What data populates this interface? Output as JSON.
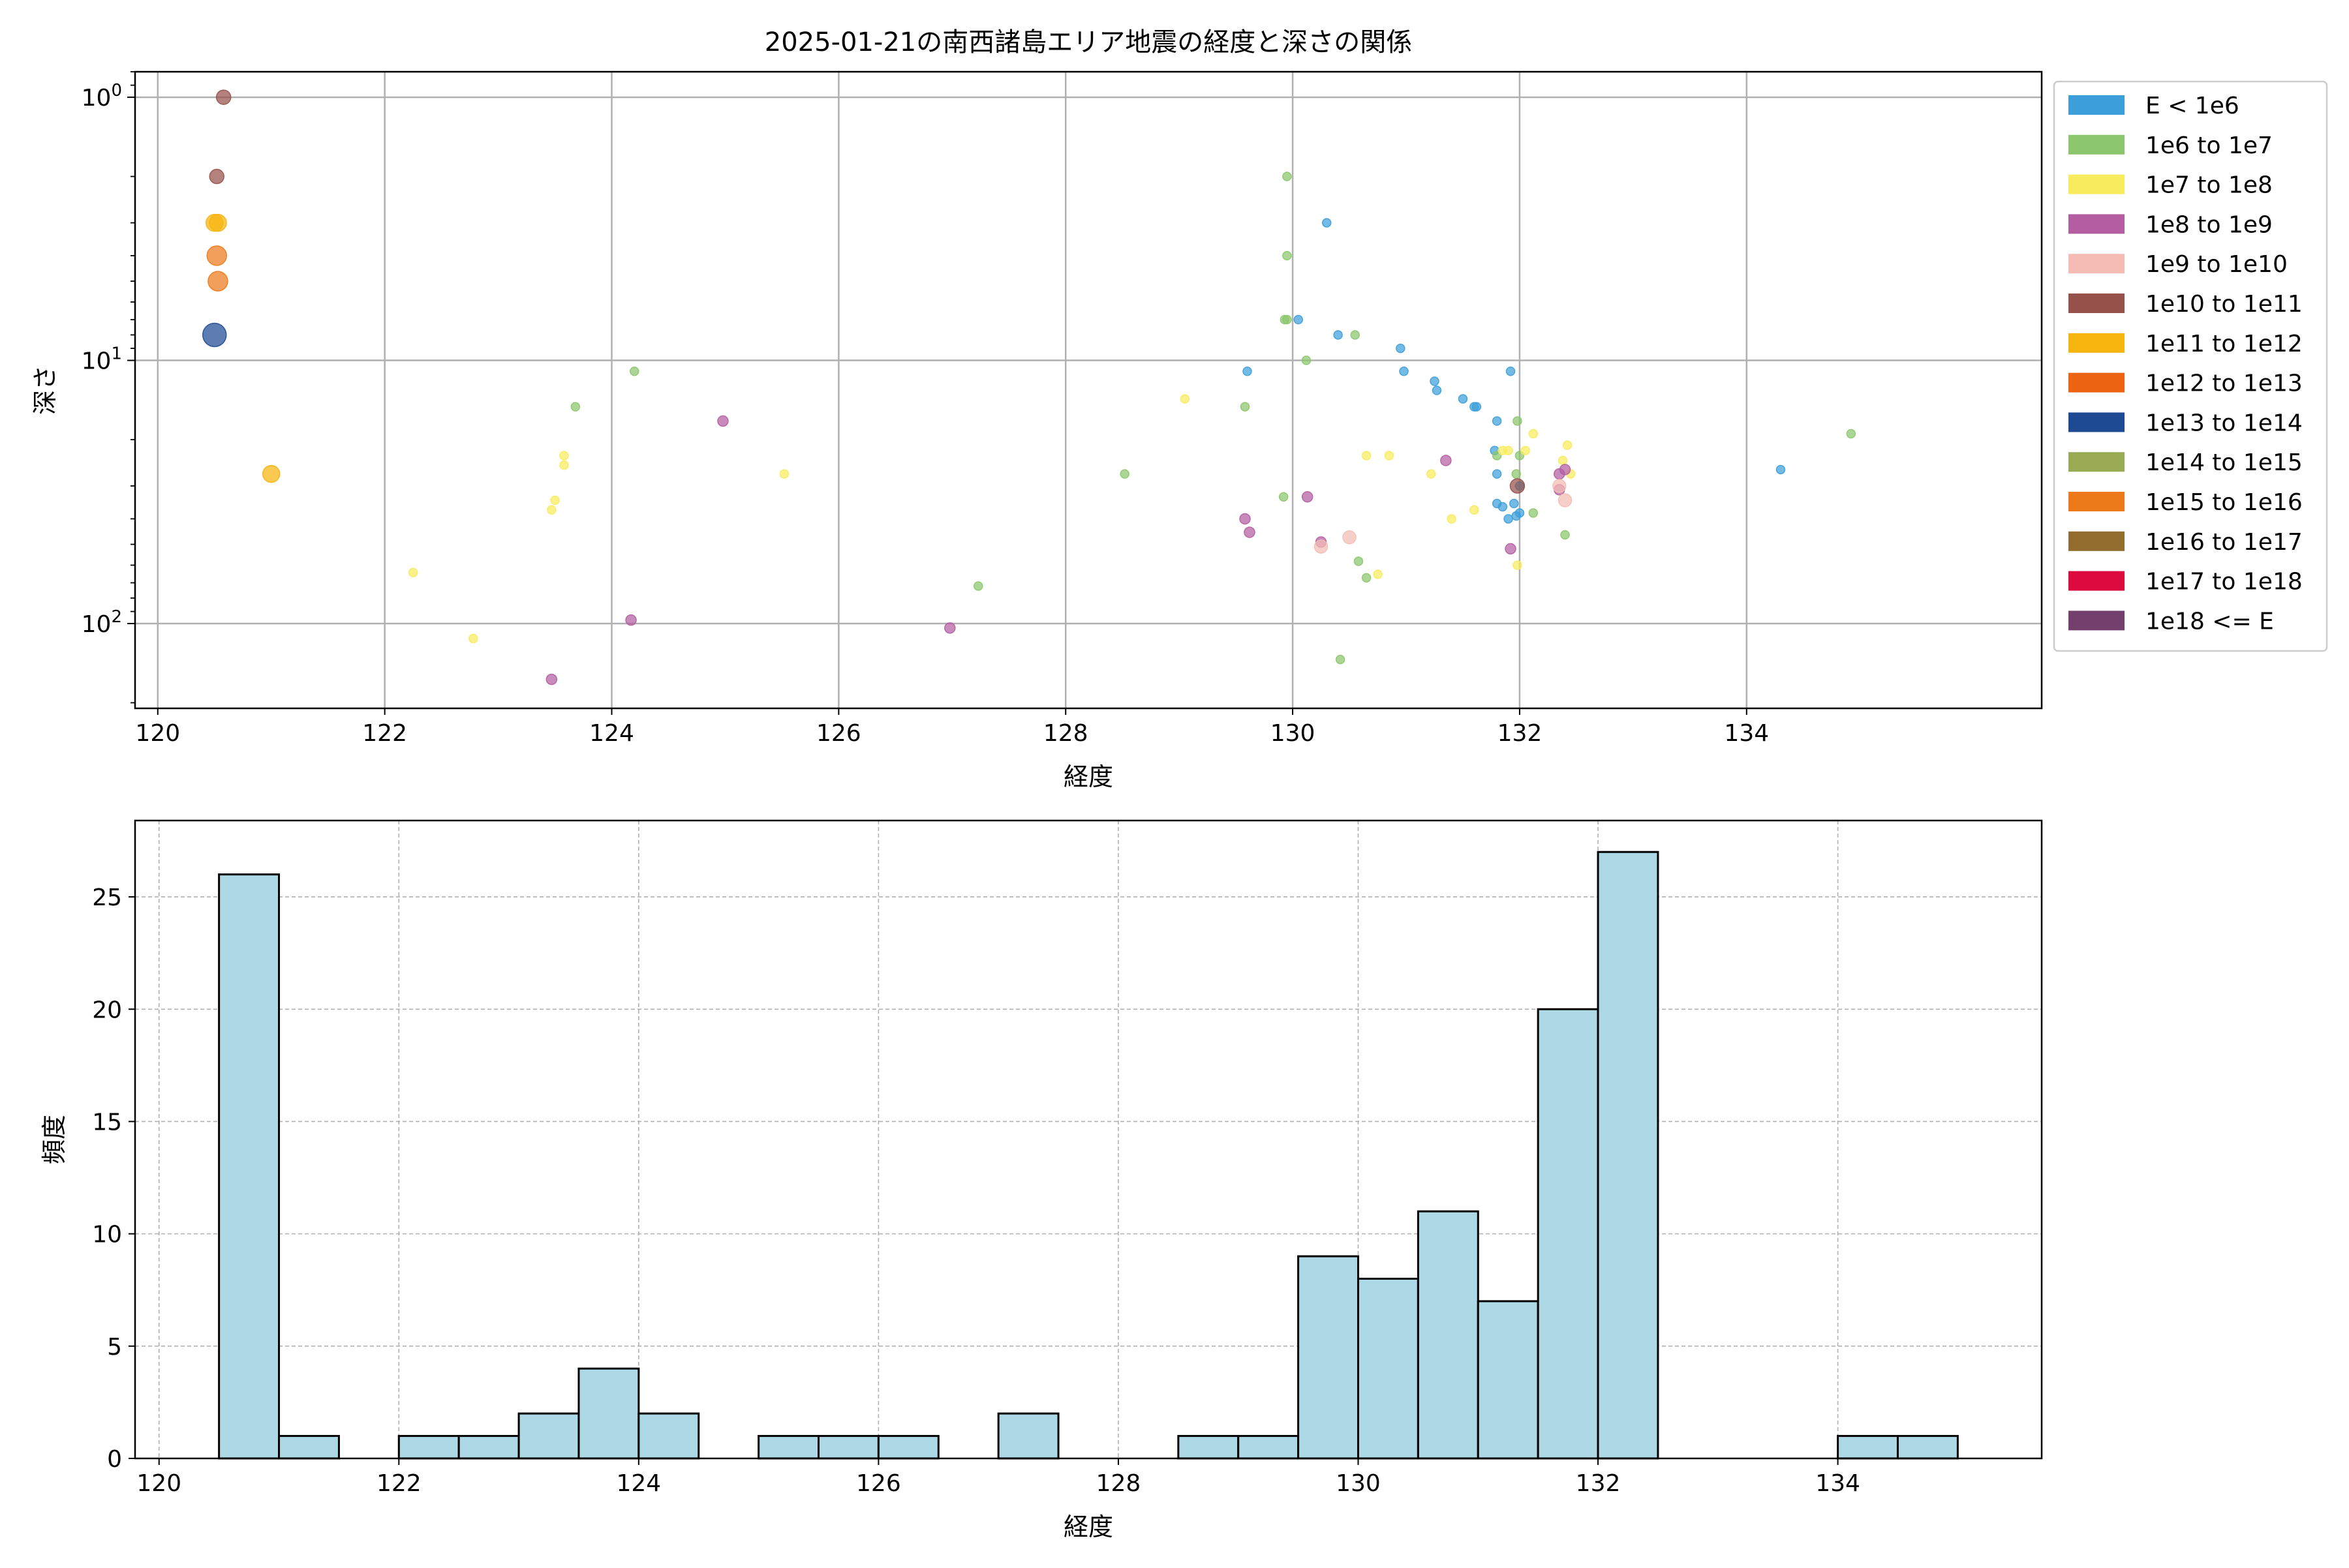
{
  "chart_data": [
    {
      "type": "scatter",
      "title": "2025-01-21の南西諸島エリア地震の経度と深さの関係",
      "xlabel": "経度",
      "ylabel": "深さ",
      "xlim": [
        119.8,
        136.6
      ],
      "ylim": [
        210,
        0.8
      ],
      "yscale": "log",
      "y_inverted": true,
      "grid": true,
      "legend_placement": "outside-right",
      "xticks": [
        120,
        122,
        124,
        126,
        128,
        130,
        132,
        134
      ],
      "xtick_labels": [
        "120",
        "122",
        "124",
        "126",
        "128",
        "130",
        "132",
        "134"
      ],
      "yticks": [
        1,
        10,
        100
      ],
      "ytick_labels": [
        {
          "base": "10",
          "exp": "0"
        },
        {
          "base": "10",
          "exp": "1"
        },
        {
          "base": "10",
          "exp": "2"
        }
      ],
      "legend": [
        {
          "label": "E < 1e6",
          "color": "#3d9fd9"
        },
        {
          "label": "1e6 to 1e7",
          "color": "#8cc66c"
        },
        {
          "label": "1e7 to 1e8",
          "color": "#f8eb5d"
        },
        {
          "label": "1e8 to 1e9",
          "color": "#b45ea1"
        },
        {
          "label": "1e9 to 1e10",
          "color": "#f4bcb4"
        },
        {
          "label": "1e10 to 1e11",
          "color": "#96524a"
        },
        {
          "label": "1e11 to 1e12",
          "color": "#f6b40e"
        },
        {
          "label": "1e12 to 1e13",
          "color": "#ec6411"
        },
        {
          "label": "1e13 to 1e14",
          "color": "#1e4a94"
        },
        {
          "label": "1e14 to 1e15",
          "color": "#98ab52"
        },
        {
          "label": "1e15 to 1e16",
          "color": "#ec7a1b"
        },
        {
          "label": "1e16 to 1e17",
          "color": "#936d2d"
        },
        {
          "label": "1e17 to 1e18",
          "color": "#dc0a3f"
        },
        {
          "label": "1e18 <= E",
          "color": "#733f6c"
        }
      ],
      "series": [
        {
          "name": "E < 1e6",
          "points": [
            [
              130.3,
              3
            ],
            [
              130.4,
              8
            ],
            [
              130.05,
              7
            ],
            [
              130.95,
              9
            ],
            [
              130.98,
              11
            ],
            [
              131.25,
              12
            ],
            [
              131.27,
              13
            ],
            [
              131.5,
              14
            ],
            [
              131.6,
              15
            ],
            [
              131.62,
              15
            ],
            [
              131.8,
              17
            ],
            [
              131.92,
              11
            ],
            [
              131.78,
              22
            ],
            [
              131.8,
              27
            ],
            [
              131.8,
              35
            ],
            [
              131.85,
              36
            ],
            [
              131.9,
              40
            ],
            [
              131.95,
              35
            ],
            [
              132,
              38
            ],
            [
              131.97,
              39
            ],
            [
              132,
              30
            ],
            [
              129.6,
              11
            ],
            [
              134.3,
              26
            ]
          ]
        },
        {
          "name": "1e6 to 1e7",
          "points": [
            [
              129.95,
              2
            ],
            [
              129.95,
              4
            ],
            [
              129.93,
              7
            ],
            [
              129.95,
              7
            ],
            [
              130.55,
              8
            ],
            [
              130.12,
              10
            ],
            [
              123.68,
              15
            ],
            [
              124.2,
              11
            ],
            [
              129.58,
              15
            ],
            [
              128.52,
              27
            ],
            [
              129.92,
              33
            ],
            [
              130.58,
              58
            ],
            [
              130.65,
              67
            ],
            [
              127.23,
              72
            ],
            [
              130.42,
              137
            ],
            [
              131.8,
              23
            ],
            [
              131.98,
              17
            ],
            [
              132,
              23
            ],
            [
              131.97,
              27
            ],
            [
              132.12,
              38
            ],
            [
              132.4,
              46
            ],
            [
              134.92,
              19
            ]
          ]
        },
        {
          "name": "1e7 to 1e8",
          "points": [
            [
              129.05,
              14
            ],
            [
              130.65,
              23
            ],
            [
              130.85,
              23
            ],
            [
              131.22,
              27
            ],
            [
              131.4,
              40
            ],
            [
              131.6,
              37
            ],
            [
              131.85,
              22
            ],
            [
              131.9,
              22
            ],
            [
              132.05,
              22
            ],
            [
              132.12,
              19
            ],
            [
              132.42,
              21
            ],
            [
              132.38,
              24
            ],
            [
              132.45,
              27
            ],
            [
              131.98,
              60
            ],
            [
              130.75,
              65
            ],
            [
              123.58,
              23
            ],
            [
              123.58,
              25
            ],
            [
              123.5,
              34
            ],
            [
              123.47,
              37
            ],
            [
              125.52,
              27
            ],
            [
              122.25,
              64
            ],
            [
              122.78,
              114
            ]
          ]
        },
        {
          "name": "1e8 to 1e9",
          "points": [
            [
              124.98,
              17
            ],
            [
              129.58,
              40
            ],
            [
              129.62,
              45
            ],
            [
              130.13,
              33
            ],
            [
              130.25,
              49
            ],
            [
              131.35,
              24
            ],
            [
              131.92,
              52
            ],
            [
              132.35,
              27
            ],
            [
              132.35,
              31
            ],
            [
              132.4,
              26
            ],
            [
              124.17,
              97
            ],
            [
              126.98,
              104
            ],
            [
              123.47,
              163
            ]
          ]
        },
        {
          "name": "1e9 to 1e10",
          "points": [
            [
              130.25,
              51
            ],
            [
              130.5,
              47
            ],
            [
              132.4,
              34
            ],
            [
              132.35,
              30
            ]
          ]
        },
        {
          "name": "1e10 to 1e11",
          "points": [
            [
              120.58,
              1
            ],
            [
              120.52,
              2
            ],
            [
              131.98,
              30
            ]
          ]
        },
        {
          "name": "1e11 to 1e12",
          "points": [
            [
              120.5,
              3
            ],
            [
              120.53,
              3
            ],
            [
              121,
              27
            ]
          ]
        },
        {
          "name": "1e15 to 1e16",
          "points": [
            [
              120.52,
              4
            ],
            [
              120.53,
              5
            ]
          ]
        },
        {
          "name": "1e13 to 1e14",
          "points": [
            [
              120.5,
              8
            ]
          ]
        }
      ]
    },
    {
      "type": "bar",
      "xlabel": "経度",
      "ylabel": "頻度",
      "xlim": [
        119.8,
        135.7
      ],
      "ylim": [
        0,
        28.4
      ],
      "grid": true,
      "xticks": [
        120,
        122,
        124,
        126,
        128,
        130,
        132,
        134
      ],
      "xtick_labels": [
        "120",
        "122",
        "124",
        "126",
        "128",
        "130",
        "132",
        "134"
      ],
      "yticks": [
        0,
        5,
        10,
        15,
        20,
        25
      ],
      "ytick_labels": [
        "0",
        "5",
        "10",
        "15",
        "20",
        "25"
      ],
      "bin_start": 120.5,
      "bin_width": 0.5,
      "values": [
        26,
        1,
        0,
        1,
        1,
        2,
        4,
        2,
        0,
        1,
        1,
        1,
        0,
        2,
        0,
        0,
        1,
        1,
        9,
        8,
        11,
        7,
        20,
        27,
        0,
        0,
        0,
        1,
        1
      ],
      "bar_color": "#add8e6",
      "edge_color": "#000000"
    }
  ]
}
